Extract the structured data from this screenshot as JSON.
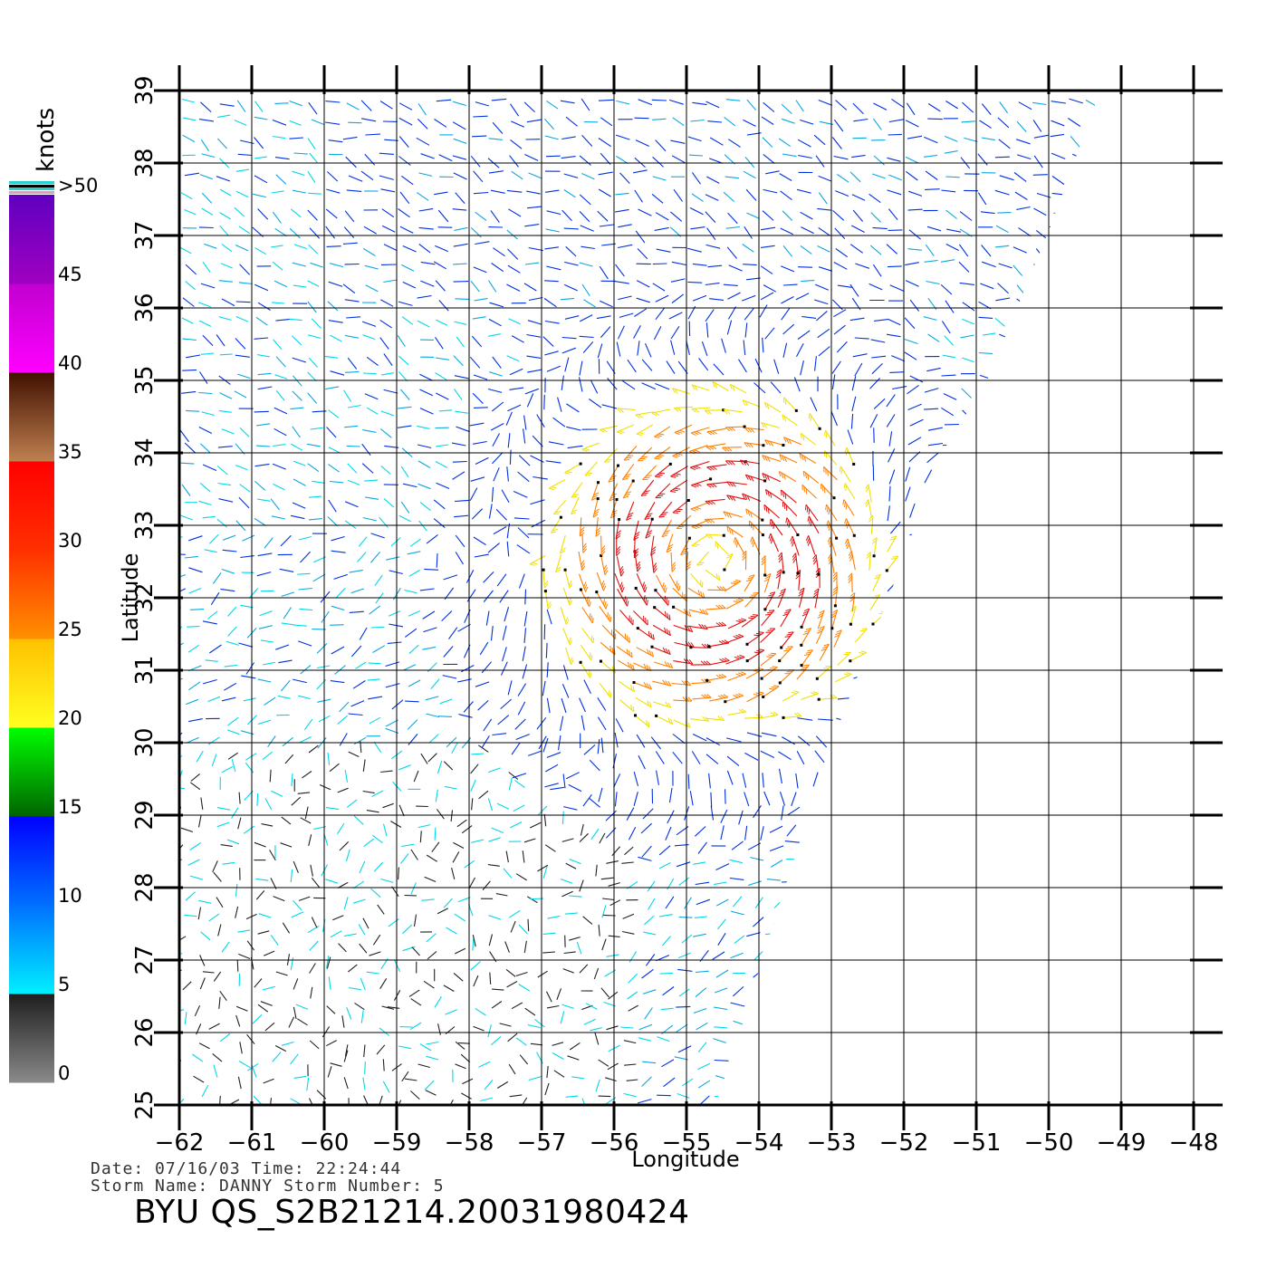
{
  "chart_data": {
    "type": "wind-vector-map",
    "xlabel": "Longitude",
    "ylabel": "Latitude",
    "xlim": [
      -62,
      -48
    ],
    "ylim": [
      25,
      39
    ],
    "xticks": [
      "-62",
      "-61",
      "-60",
      "-59",
      "-58",
      "-57",
      "-56",
      "-55",
      "-54",
      "-53",
      "-52",
      "-51",
      "-50",
      "-49",
      "-48"
    ],
    "yticks": [
      "25",
      "26",
      "27",
      "28",
      "29",
      "30",
      "31",
      "32",
      "33",
      "34",
      "35",
      "36",
      "37",
      "38",
      "39"
    ],
    "grid": true,
    "storm_center": {
      "lon": -54.6,
      "lat": 32.5
    },
    "colorbar": {
      "units": "knots",
      "labels": [
        "0",
        "5",
        "10",
        "15",
        "20",
        "25",
        "30",
        "35",
        "40",
        "45",
        ">50"
      ],
      "bands": [
        {
          "from": 0,
          "to": 5,
          "colors": [
            "#8a8a8a",
            "#1e1e1e"
          ]
        },
        {
          "from": 5,
          "to": 10,
          "colors": [
            "#00f0ff",
            "#0070ff"
          ]
        },
        {
          "from": 10,
          "to": 15,
          "colors": [
            "#0070ff",
            "#0000ff"
          ]
        },
        {
          "from": 15,
          "to": 20,
          "colors": [
            "#006400",
            "#00ff00"
          ]
        },
        {
          "from": 20,
          "to": 25,
          "colors": [
            "#ffff20",
            "#ffc000"
          ]
        },
        {
          "from": 25,
          "to": 30,
          "colors": [
            "#ff9000",
            "#ff3000"
          ]
        },
        {
          "from": 30,
          "to": 35,
          "colors": [
            "#ff3000",
            "#ff0000"
          ]
        },
        {
          "from": 35,
          "to": 40,
          "colors": [
            "#c08050",
            "#401000"
          ]
        },
        {
          "from": 40,
          "to": 45,
          "colors": [
            "#ff00ff",
            "#c000d0"
          ]
        },
        {
          "from": 45,
          "to": 50,
          "colors": [
            "#a000c0",
            "#6000c0"
          ]
        }
      ]
    }
  },
  "info": {
    "date_line": "Date: 07/16/03   Time: 22:24:44",
    "storm_line": "Storm  Name: DANNY   Storm  Number: 5",
    "title": "BYU  QS_S2B21214.20031980424"
  }
}
